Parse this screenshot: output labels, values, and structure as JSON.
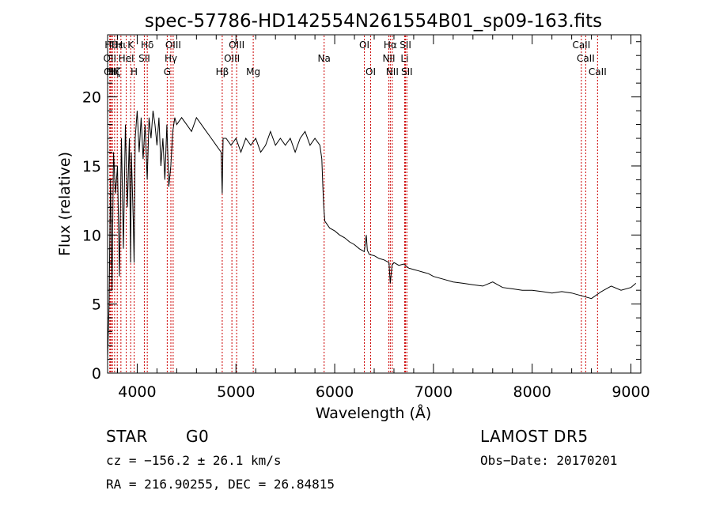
{
  "chart_data": {
    "type": "line",
    "title": "spec-57786-HD142554N261554B01_sp09-163.fits",
    "xlabel": "Wavelength (Å)",
    "ylabel": "Flux (relative)",
    "xlim": [
      3700,
      9100
    ],
    "ylim": [
      0,
      24.5
    ],
    "xticks": [
      4000,
      5000,
      6000,
      7000,
      8000,
      9000
    ],
    "yticks": [
      0,
      5,
      10,
      15,
      20
    ],
    "grid": false,
    "line_color": "#000000",
    "marker_color": "#cc0000",
    "series": [
      {
        "x": [
          3700,
          3715,
          3730,
          3745,
          3760,
          3780,
          3800,
          3820,
          3840,
          3860,
          3880,
          3900,
          3920,
          3933,
          3940,
          3960,
          3968,
          3980,
          4000,
          4020,
          4040,
          4060,
          4080,
          4101,
          4120,
          4140,
          4160,
          4180,
          4200,
          4220,
          4240,
          4260,
          4280,
          4300,
          4320,
          4340,
          4360,
          4380,
          4400,
          4450,
          4500,
          4550,
          4600,
          4650,
          4700,
          4750,
          4800,
          4850,
          4861,
          4870,
          4900,
          4950,
          5000,
          5050,
          5100,
          5150,
          5200,
          5250,
          5300,
          5350,
          5400,
          5450,
          5500,
          5550,
          5600,
          5650,
          5700,
          5750,
          5800,
          5850,
          5870,
          5880,
          5890,
          5900,
          5920,
          5950,
          6000,
          6050,
          6100,
          6150,
          6200,
          6250,
          6300,
          6320,
          6330,
          6350,
          6400,
          6450,
          6500,
          6550,
          6563,
          6580,
          6600,
          6650,
          6700,
          6750,
          6800,
          6850,
          6900,
          6950,
          7000,
          7100,
          7200,
          7300,
          7400,
          7500,
          7600,
          7700,
          7800,
          7900,
          8000,
          8100,
          8200,
          8300,
          8400,
          8500,
          8600,
          8700,
          8800,
          8900,
          9000,
          9050
        ],
        "y": [
          1.0,
          5.0,
          14.0,
          6.0,
          16.0,
          13.0,
          15.0,
          7.0,
          17.0,
          9.0,
          18.0,
          12.0,
          17.0,
          8.0,
          16.0,
          11.0,
          8.0,
          17.0,
          19.0,
          16.0,
          18.5,
          15.5,
          18.0,
          14.0,
          18.5,
          17.0,
          19.0,
          18.0,
          16.5,
          18.5,
          15.0,
          17.0,
          14.0,
          18.0,
          13.5,
          15.0,
          17.5,
          18.5,
          18.0,
          18.5,
          18.0,
          17.5,
          18.5,
          18.0,
          17.5,
          17.0,
          16.5,
          16.0,
          13.0,
          17.0,
          17.0,
          16.5,
          17.0,
          16.0,
          17.0,
          16.5,
          17.0,
          16.0,
          16.5,
          17.5,
          16.5,
          17.0,
          16.5,
          17.0,
          16.0,
          17.0,
          17.5,
          16.5,
          17.0,
          16.5,
          15.5,
          13.5,
          12.0,
          11.0,
          10.8,
          10.5,
          10.3,
          10.0,
          9.8,
          9.5,
          9.3,
          9.0,
          8.8,
          10.0,
          8.9,
          8.6,
          8.5,
          8.3,
          8.2,
          8.0,
          6.5,
          7.8,
          8.0,
          7.8,
          7.9,
          7.6,
          7.5,
          7.4,
          7.3,
          7.2,
          7.0,
          6.8,
          6.6,
          6.5,
          6.4,
          6.3,
          6.6,
          6.2,
          6.1,
          6.0,
          6.0,
          5.9,
          5.8,
          5.9,
          5.8,
          5.6,
          5.4,
          5.9,
          6.3,
          6.0,
          6.2,
          6.5
        ]
      }
    ],
    "lines": [
      {
        "x": 3722,
        "label": "OII",
        "row": 2
      },
      {
        "x": 3727,
        "label": "OII",
        "row": 3
      },
      {
        "x": 3736,
        "label": "Hθ",
        "row": 1
      },
      {
        "x": 3750,
        "label": "Hη",
        "row": 3
      },
      {
        "x": 3771,
        "label": "Hζ",
        "row": 3
      },
      {
        "x": 3798,
        "label": "Hε",
        "row": 1
      },
      {
        "x": 3835,
        "label": "Hι",
        "row": 1
      },
      {
        "x": 3889,
        "label": "HeI",
        "row": 2
      },
      {
        "x": 3934,
        "label": "K",
        "row": 1
      },
      {
        "x": 3969,
        "label": "H",
        "row": 3
      },
      {
        "x": 4072,
        "label": "SII",
        "row": 2
      },
      {
        "x": 4102,
        "label": "Hδ",
        "row": 1
      },
      {
        "x": 4304,
        "label": "G",
        "row": 3
      },
      {
        "x": 4341,
        "label": "Hγ",
        "row": 2
      },
      {
        "x": 4364,
        "label": "OIII",
        "row": 1
      },
      {
        "x": 4861,
        "label": "Hβ",
        "row": 3
      },
      {
        "x": 4959,
        "label": "OIII",
        "row": 2
      },
      {
        "x": 5007,
        "label": "OIII",
        "row": 1
      },
      {
        "x": 5175,
        "label": "Mg",
        "row": 3
      },
      {
        "x": 5893,
        "label": "Na",
        "row": 2
      },
      {
        "x": 6300,
        "label": "OI",
        "row": 1
      },
      {
        "x": 6364,
        "label": "OI",
        "row": 3
      },
      {
        "x": 6548,
        "label": "NII",
        "row": 2
      },
      {
        "x": 6563,
        "label": "Hα",
        "row": 1
      },
      {
        "x": 6583,
        "label": "NII",
        "row": 3
      },
      {
        "x": 6708,
        "label": "Li",
        "row": 2
      },
      {
        "x": 6717,
        "label": "SII",
        "row": 1
      },
      {
        "x": 6731,
        "label": "SII",
        "row": 3
      },
      {
        "x": 8498,
        "label": "CaII",
        "row": 1
      },
      {
        "x": 8542,
        "label": "CaII",
        "row": 2
      },
      {
        "x": 8662,
        "label": "CaII",
        "row": 3
      }
    ]
  },
  "footer": {
    "object_class": "STAR",
    "subclass": "G0",
    "survey": "LAMOST DR5",
    "velocity": "cz = −156.2 ± 26.1 km/s",
    "obs_date": "Obs−Date: 20170201",
    "coords": "RA = 216.90255, DEC =  26.84815"
  }
}
